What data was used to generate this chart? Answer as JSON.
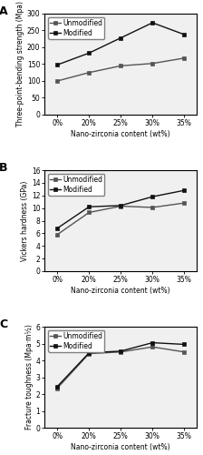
{
  "x_labels": [
    "0%",
    "20%",
    "25%",
    "30%",
    "35%"
  ],
  "x_positions": [
    0,
    1,
    2,
    3,
    4
  ],
  "panel_A": {
    "title": "A",
    "ylabel": "Three-point-bending strength (Mpa)",
    "xlabel": "Nano-zirconia content (wt%)",
    "unmodified": [
      100,
      125,
      145,
      152,
      168
    ],
    "modified": [
      148,
      183,
      228,
      273,
      238
    ],
    "ylim": [
      0,
      300
    ],
    "yticks": [
      0,
      50,
      100,
      150,
      200,
      250,
      300
    ]
  },
  "panel_B": {
    "title": "B",
    "ylabel": "Vickers hardness (GPa)",
    "xlabel": "Nano-zirconia content (wt%)",
    "unmodified": [
      5.8,
      9.3,
      10.3,
      10.1,
      10.8
    ],
    "modified": [
      6.8,
      10.2,
      10.4,
      11.8,
      12.8
    ],
    "ylim": [
      0,
      16
    ],
    "yticks": [
      0,
      2,
      4,
      6,
      8,
      10,
      12,
      14,
      16
    ]
  },
  "panel_C": {
    "title": "C",
    "ylabel": "Fracture toughness (Mpa·m½)",
    "xlabel": "Nano-zirconia content (wt%)",
    "unmodified": [
      2.35,
      4.4,
      4.5,
      4.8,
      4.5
    ],
    "modified": [
      2.45,
      4.45,
      4.55,
      5.05,
      4.95
    ],
    "ylim": [
      0,
      6
    ],
    "yticks": [
      0,
      1,
      2,
      3,
      4,
      5,
      6
    ]
  },
  "unmodified_color": "#555555",
  "modified_color": "#111111",
  "marker": "s",
  "linewidth": 1.0,
  "markersize": 3.5,
  "legend_fontsize": 5.5,
  "label_fontsize": 5.5,
  "tick_fontsize": 5.5,
  "panel_label_fontsize": 9,
  "background_color": "#f0f0f0"
}
